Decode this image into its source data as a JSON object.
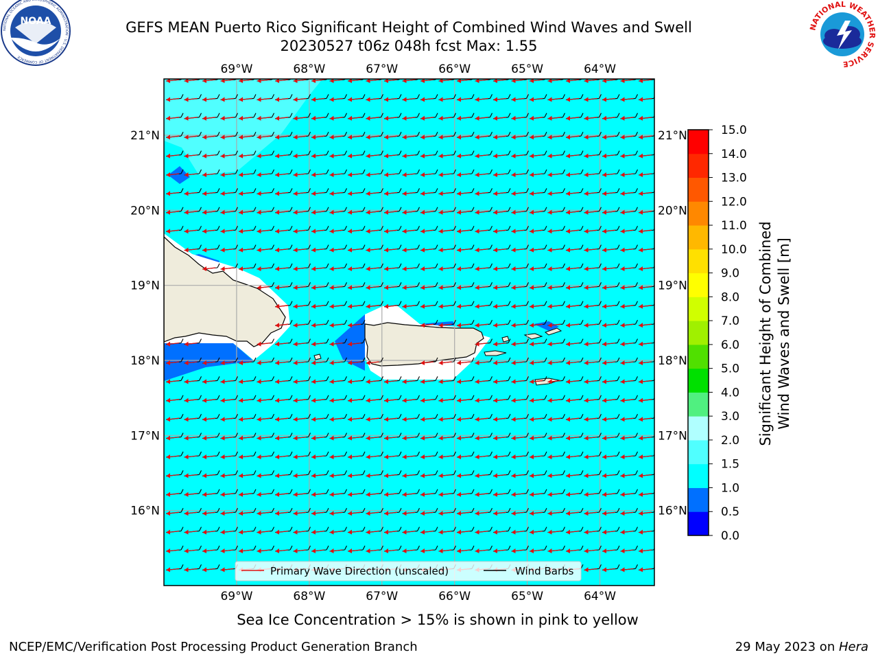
{
  "header": {
    "title_line1": "GEFS MEAN Puerto Rico Significant Height of Combined Wind Waves and Swell",
    "title_line2": "20230527 t06z 048h fcst   Max: 1.55"
  },
  "logos": {
    "noaa": {
      "text": "NOAA",
      "ring_text": "NATIONAL OCEANIC AND ATMOSPHERIC ADMINISTRATION · U.S. DEPARTMENT OF COMMERCE"
    },
    "nws": {
      "ring_text": "NATIONAL WEATHER SERVICE"
    }
  },
  "map": {
    "lon_range": [
      -70,
      -63.25
    ],
    "lat_range": [
      15,
      21.75
    ],
    "lon_ticks": [
      -69,
      -68,
      -67,
      -66,
      -65,
      -64
    ],
    "lon_tick_labels": [
      "69°W",
      "68°W",
      "67°W",
      "66°W",
      "65°W",
      "64°W"
    ],
    "lat_ticks": [
      16,
      17,
      18,
      19,
      20,
      21
    ],
    "lat_tick_labels": [
      "16°N",
      "17°N",
      "18°N",
      "19°N",
      "20°N",
      "21°N"
    ],
    "field_color_background": "#00ffff",
    "land_color": "#efecdc",
    "legend": {
      "wave_label": "Primary Wave Direction (unscaled)",
      "wind_label": "Wind Barbs"
    }
  },
  "colorbar": {
    "title_line1": "Significant Height of Combined",
    "title_line2": "Wind Waves and Swell [m]",
    "levels": [
      0.0,
      0.5,
      1.0,
      1.5,
      2.0,
      3.0,
      4.0,
      5.0,
      6.0,
      7.0,
      8.0,
      9.0,
      10.0,
      11.0,
      12.0,
      13.0,
      14.0,
      15.0
    ],
    "level_labels": [
      "0.0",
      "0.5",
      "1.0",
      "1.5",
      "2.0",
      "3.0",
      "4.0",
      "5.0",
      "6.0",
      "7.0",
      "8.0",
      "9.0",
      "10.0",
      "11.0",
      "12.0",
      "13.0",
      "14.0",
      "15.0"
    ],
    "colors": [
      "#0000ff",
      "#0070ff",
      "#00ffff",
      "#50ffff",
      "#b0ffff",
      "#50f080",
      "#00e000",
      "#50e000",
      "#a0f000",
      "#d0ff00",
      "#ffff00",
      "#ffe000",
      "#ffb800",
      "#ff8800",
      "#ff5800",
      "#ff2800",
      "#ff0000"
    ]
  },
  "footer": {
    "sea_ice_note": "Sea Ice Concentration > 15% is shown in pink to yellow",
    "left": "NCEP/EMC/Verification Post Processing Product Generation Branch",
    "right_prefix": "29 May 2023 on ",
    "right_host": "Hera"
  }
}
